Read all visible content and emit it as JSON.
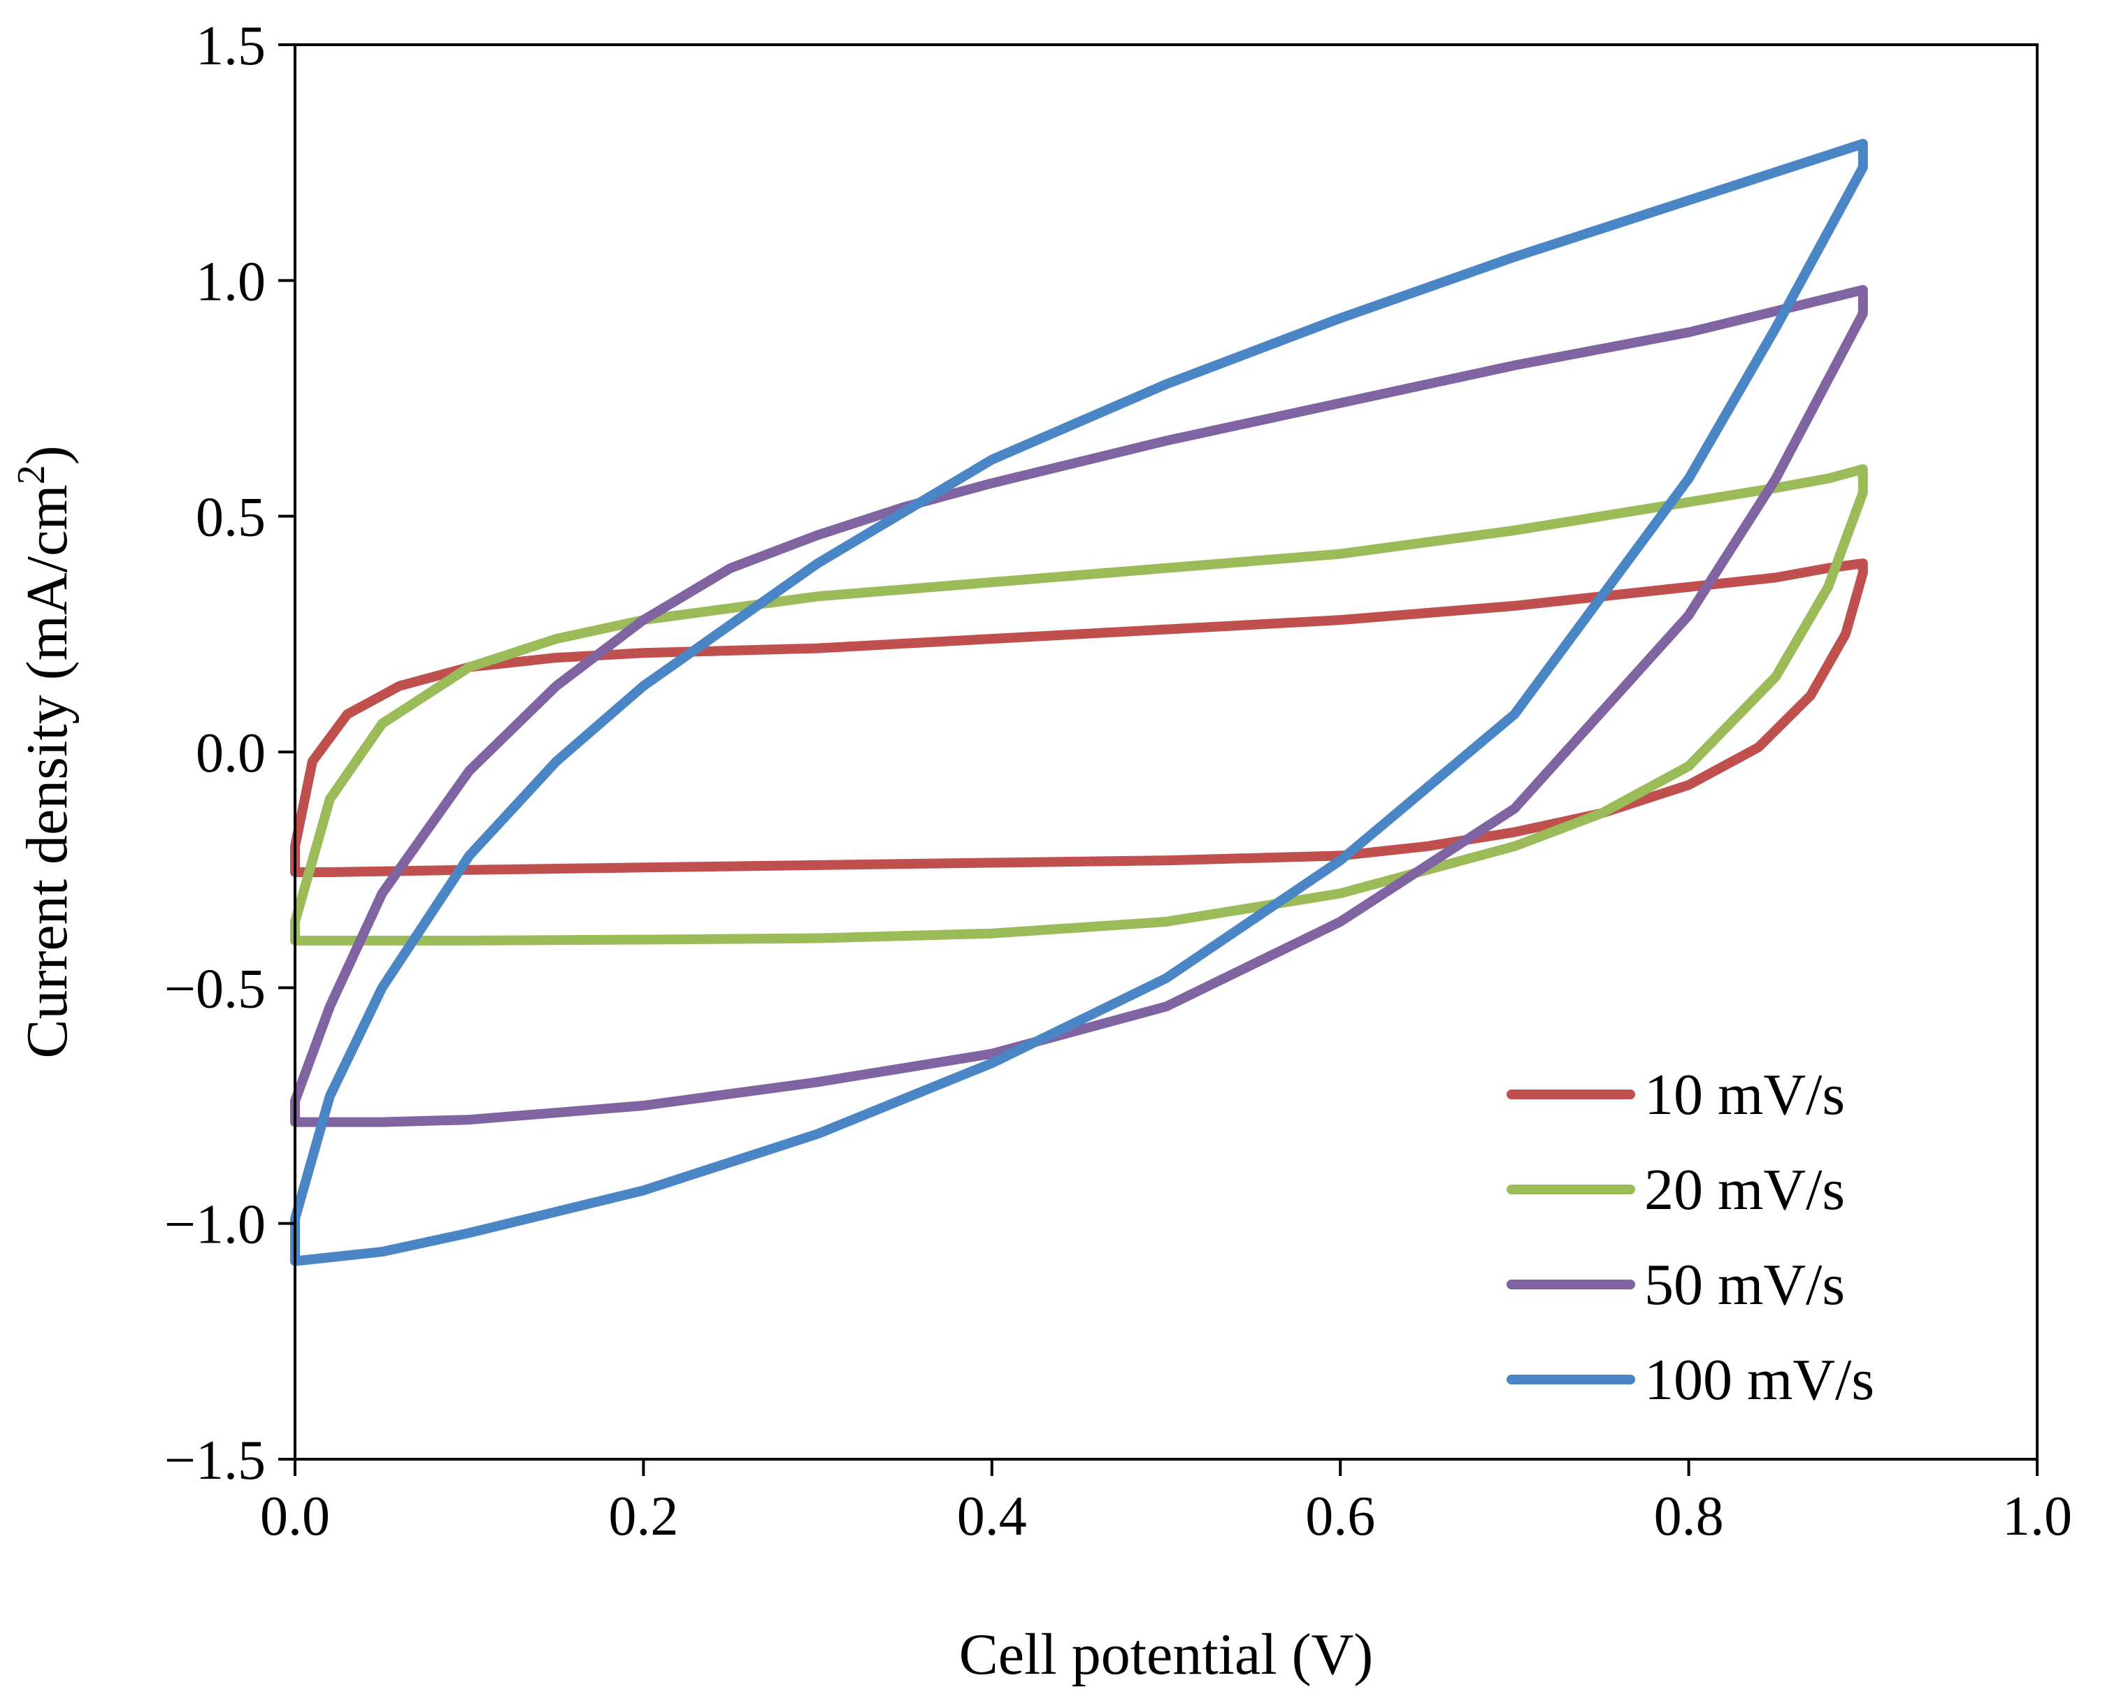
{
  "chart_data": {
    "type": "line",
    "title": "",
    "xlabel": "Cell potential (V)",
    "ylabel_main": "Current density (mA/cm",
    "ylabel_sup": "2",
    "ylabel_end": ")",
    "xlim": [
      0,
      1.0
    ],
    "ylim": [
      -1.5,
      1.5
    ],
    "x_ticks": [
      0,
      0.2,
      0.4,
      0.6,
      0.8,
      1.0
    ],
    "x_tick_labels": [
      "0.0",
      "0.2",
      "0.4",
      "0.6",
      "0.8",
      "1.0"
    ],
    "y_ticks": [
      1.5,
      1.0,
      0.5,
      0.0,
      -0.5,
      -1.0,
      -1.5
    ],
    "y_tick_labels": [
      "1.5",
      "1.0",
      "0.5",
      "0.0",
      "−0.5",
      "−1.0",
      "−1.5"
    ],
    "grid": false,
    "legend_position": "bottom-right",
    "series": [
      {
        "name": "10 mV/s",
        "color": "#C0504D",
        "x": [
          0,
          0.01,
          0.03,
          0.06,
          0.1,
          0.15,
          0.2,
          0.3,
          0.4,
          0.5,
          0.6,
          0.7,
          0.8,
          0.85,
          0.88,
          0.9,
          0.9,
          0.89,
          0.87,
          0.84,
          0.8,
          0.75,
          0.7,
          0.65,
          0.6,
          0.5,
          0.4,
          0.3,
          0.2,
          0.1,
          0.05,
          0.02,
          0,
          0
        ],
        "y": [
          -0.2,
          -0.02,
          0.08,
          0.14,
          0.18,
          0.2,
          0.21,
          0.22,
          0.24,
          0.26,
          0.28,
          0.31,
          0.35,
          0.37,
          0.39,
          0.4,
          0.38,
          0.25,
          0.12,
          0.01,
          -0.07,
          -0.13,
          -0.17,
          -0.2,
          -0.22,
          -0.23,
          -0.235,
          -0.24,
          -0.245,
          -0.25,
          -0.253,
          -0.255,
          -0.255,
          -0.2
        ]
      },
      {
        "name": "20 mV/s",
        "color": "#9BBB59",
        "x": [
          0,
          0.02,
          0.05,
          0.1,
          0.15,
          0.2,
          0.3,
          0.4,
          0.5,
          0.6,
          0.7,
          0.8,
          0.85,
          0.88,
          0.9,
          0.9,
          0.88,
          0.85,
          0.8,
          0.75,
          0.7,
          0.6,
          0.5,
          0.4,
          0.3,
          0.2,
          0.1,
          0.05,
          0,
          0
        ],
        "y": [
          -0.36,
          -0.1,
          0.06,
          0.18,
          0.24,
          0.28,
          0.33,
          0.36,
          0.39,
          0.42,
          0.47,
          0.53,
          0.56,
          0.58,
          0.6,
          0.55,
          0.35,
          0.16,
          -0.03,
          -0.13,
          -0.2,
          -0.3,
          -0.36,
          -0.385,
          -0.395,
          -0.398,
          -0.4,
          -0.4,
          -0.4,
          -0.36
        ]
      },
      {
        "name": "50 mV/s",
        "color": "#8064A2",
        "x": [
          0,
          0.02,
          0.05,
          0.1,
          0.15,
          0.2,
          0.25,
          0.3,
          0.35,
          0.4,
          0.5,
          0.6,
          0.7,
          0.8,
          0.9,
          0.9,
          0.85,
          0.8,
          0.7,
          0.6,
          0.5,
          0.4,
          0.3,
          0.2,
          0.1,
          0.05,
          0,
          0
        ],
        "y": [
          -0.74,
          -0.54,
          -0.3,
          -0.04,
          0.14,
          0.28,
          0.39,
          0.46,
          0.52,
          0.57,
          0.66,
          0.74,
          0.82,
          0.89,
          0.98,
          0.93,
          0.58,
          0.29,
          -0.12,
          -0.36,
          -0.54,
          -0.64,
          -0.7,
          -0.75,
          -0.78,
          -0.785,
          -0.785,
          -0.74
        ]
      },
      {
        "name": "100 mV/s",
        "color": "#4A86C5",
        "x": [
          0,
          0.02,
          0.05,
          0.1,
          0.15,
          0.2,
          0.3,
          0.4,
          0.5,
          0.6,
          0.7,
          0.8,
          0.9,
          0.9,
          0.85,
          0.8,
          0.7,
          0.6,
          0.5,
          0.4,
          0.3,
          0.2,
          0.1,
          0.05,
          0,
          0
        ],
        "y": [
          -0.99,
          -0.73,
          -0.5,
          -0.22,
          -0.02,
          0.14,
          0.4,
          0.62,
          0.78,
          0.92,
          1.05,
          1.17,
          1.29,
          1.24,
          0.9,
          0.58,
          0.08,
          -0.23,
          -0.48,
          -0.66,
          -0.81,
          -0.93,
          -1.02,
          -1.06,
          -1.08,
          -0.99
        ]
      }
    ]
  }
}
